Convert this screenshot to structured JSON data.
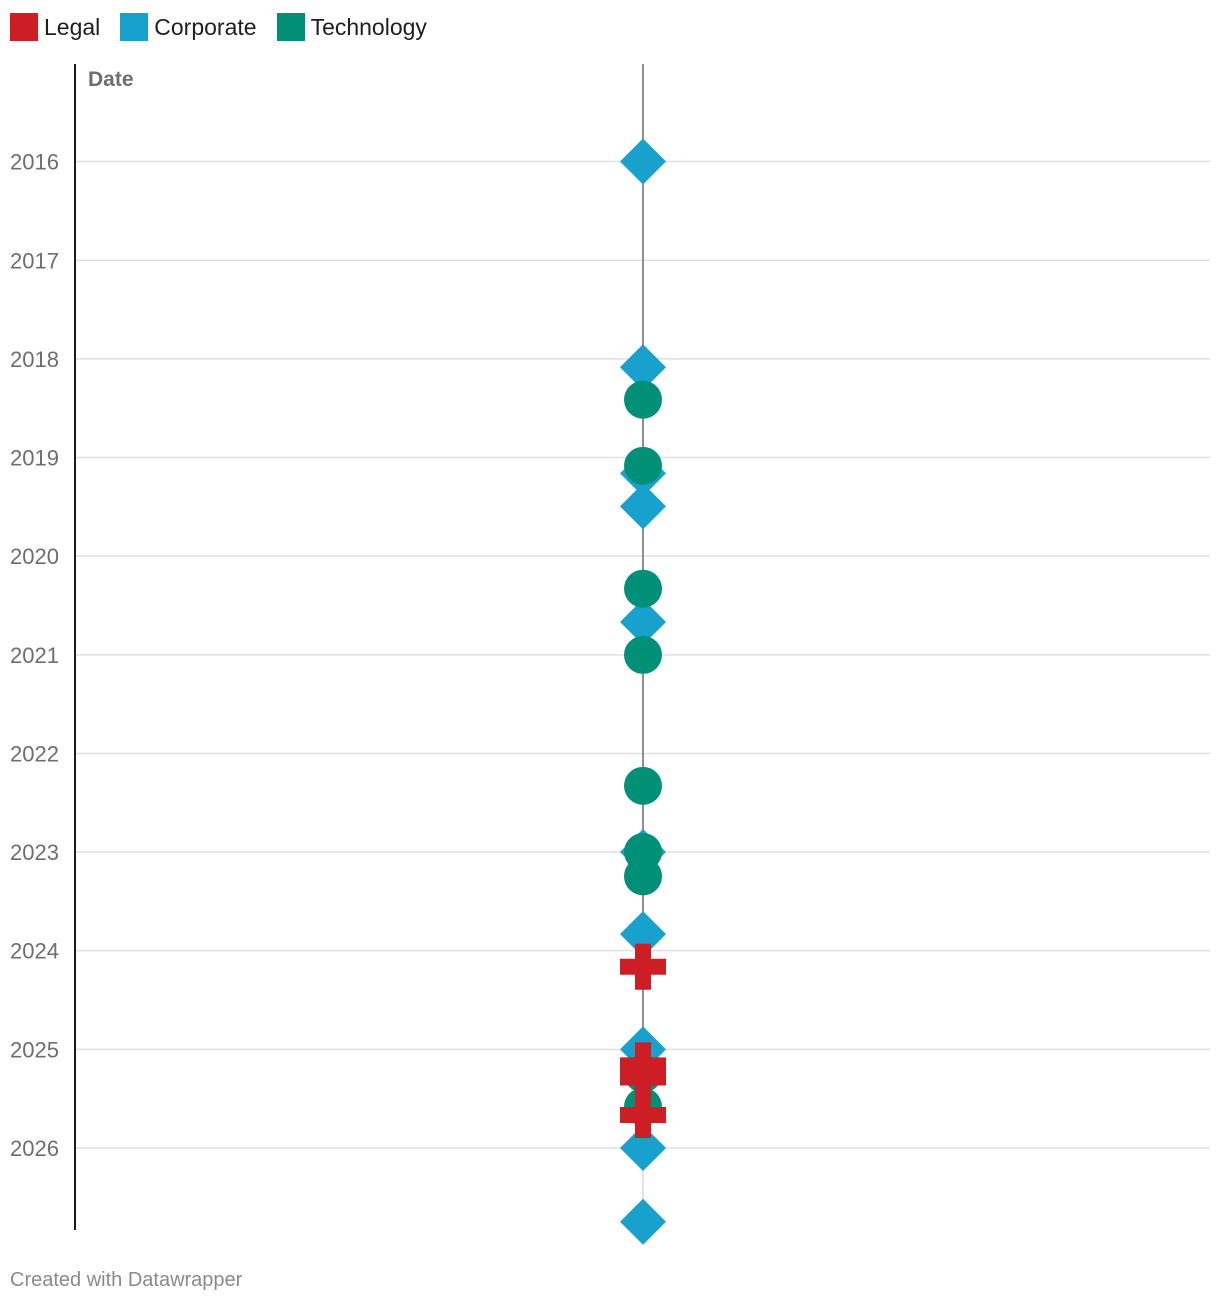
{
  "chart_data": {
    "type": "scatter",
    "ylabel": "Date",
    "y_ticks": [
      "2016",
      "2017",
      "2018",
      "2019",
      "2020",
      "2021",
      "2022",
      "2023",
      "2024",
      "2025",
      "2026"
    ],
    "ylim": [
      "2015-01-01",
      "2026-12-31"
    ],
    "grid": true,
    "legend_position": "top-left",
    "series": [
      {
        "name": "Legal",
        "color": "#cc1e24",
        "marker": "cross",
        "dates": [
          "2024-03-01",
          "2025-03-01",
          "2025-04-15",
          "2025-09-01"
        ]
      },
      {
        "name": "Corporate",
        "color": "#18a1cd",
        "marker": "diamond",
        "dates": [
          "2016-01-01",
          "2018-02-01",
          "2019-03-01",
          "2019-07-01",
          "2020-09-01",
          "2023-01-01",
          "2023-11-01",
          "2025-01-01",
          "2026-01-01",
          "2026-10-01"
        ]
      },
      {
        "name": "Technology",
        "color": "#009078",
        "marker": "circle",
        "dates": [
          "2018-06-01",
          "2019-02-01",
          "2020-05-01",
          "2021-01-01",
          "2022-05-01",
          "2023-01-01",
          "2023-04-01",
          "2025-04-01",
          "2025-08-01"
        ]
      }
    ]
  },
  "footer": {
    "credit": "Created with Datawrapper"
  }
}
